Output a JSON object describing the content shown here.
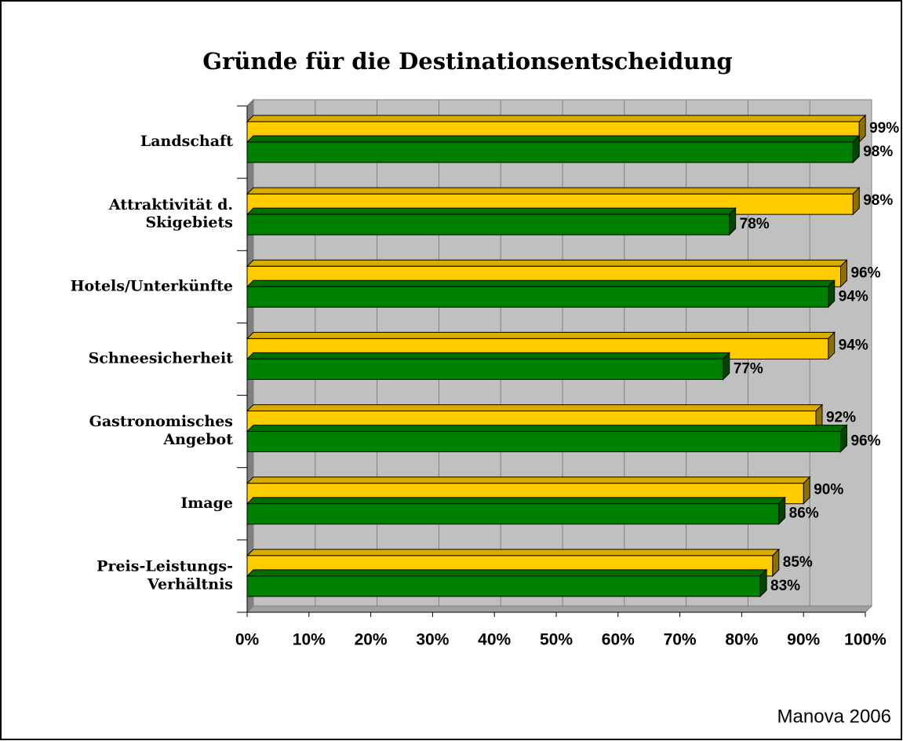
{
  "chart_data": {
    "type": "bar3d_horizontal",
    "title": "Gründe für die Destinationsentscheidung",
    "note": "Manova 2006",
    "categories": [
      "Landschaft",
      "Attraktivität d.\nSkigebiets",
      "Hotels/Unterkünfte",
      "Schneesicherheit",
      "Gastronomisches\nAngebot",
      "Image",
      "Preis-Leistungs-\nVerhältnis"
    ],
    "series": [
      {
        "color": "#ffcc00",
        "values": [
          99,
          98,
          96,
          94,
          92,
          90,
          85
        ],
        "value_labels": [
          "99%",
          "98%",
          "96%",
          "94%",
          "92%",
          "90%",
          "85%"
        ]
      },
      {
        "color": "#008000",
        "values": [
          98,
          78,
          94,
          77,
          96,
          86,
          83
        ],
        "value_labels": [
          "98%",
          "78%",
          "94%",
          "77%",
          "96%",
          "86%",
          "83%"
        ]
      }
    ],
    "xlim": [
      0,
      100
    ],
    "xticks": [
      {
        "value": 0,
        "label": "0%"
      },
      {
        "value": 10,
        "label": "10%"
      },
      {
        "value": 20,
        "label": "20%"
      },
      {
        "value": 30,
        "label": "30%"
      },
      {
        "value": 40,
        "label": "40%"
      },
      {
        "value": 50,
        "label": "50%"
      },
      {
        "value": 60,
        "label": "60%"
      },
      {
        "value": 70,
        "label": "70%"
      },
      {
        "value": 80,
        "label": "80%"
      },
      {
        "value": 90,
        "label": "90%"
      },
      {
        "value": 100,
        "label": "100%"
      }
    ],
    "grid": true
  }
}
